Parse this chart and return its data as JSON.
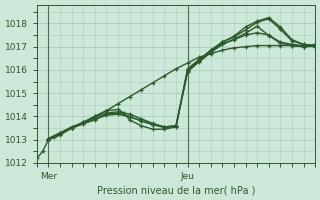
{
  "bg_color": "#cce8d8",
  "grid_color": "#aaccbb",
  "line_color": "#2d5a2d",
  "tick_label_color": "#2d5a2d",
  "xlabel": "Pression niveau de la mer( hPa )",
  "ylim": [
    1012,
    1018.8
  ],
  "yticks": [
    1012,
    1013,
    1014,
    1015,
    1016,
    1017,
    1018
  ],
  "xlim": [
    0,
    48
  ],
  "xticks": [
    2,
    26
  ],
  "xtick_labels": [
    "Mer",
    "Jeu"
  ],
  "vlines": [
    2,
    26
  ],
  "lines": [
    {
      "x": [
        0,
        1,
        2,
        3,
        4,
        6,
        8,
        10,
        12,
        14,
        16,
        18,
        20,
        22,
        24,
        26,
        28,
        30,
        32,
        34,
        36,
        38,
        40,
        42,
        44,
        46,
        48
      ],
      "y": [
        1012.2,
        1012.5,
        1013.0,
        1013.1,
        1013.2,
        1013.5,
        1013.75,
        1014.0,
        1014.25,
        1014.55,
        1014.85,
        1015.15,
        1015.45,
        1015.75,
        1016.05,
        1016.3,
        1016.55,
        1016.7,
        1016.85,
        1016.95,
        1017.0,
        1017.05,
        1017.05,
        1017.05,
        1017.05,
        1017.0,
        1017.1
      ],
      "lw": 1.0
    },
    {
      "x": [
        2,
        4,
        6,
        8,
        10,
        12,
        14,
        16,
        18,
        20,
        22,
        24,
        26,
        28,
        30,
        32,
        34,
        36,
        38,
        40,
        42,
        44,
        46,
        48
      ],
      "y": [
        1013.0,
        1013.25,
        1013.5,
        1013.7,
        1013.85,
        1014.1,
        1014.15,
        1014.0,
        1013.8,
        1013.65,
        1013.55,
        1013.6,
        1015.95,
        1016.35,
        1016.75,
        1017.1,
        1017.3,
        1017.5,
        1017.6,
        1017.5,
        1017.2,
        1017.1,
        1017.05,
        1017.0
      ],
      "lw": 1.0
    },
    {
      "x": [
        2,
        4,
        6,
        8,
        10,
        12,
        14,
        15,
        16,
        18,
        20,
        22,
        24,
        26,
        28,
        30,
        32,
        34,
        36,
        38,
        40,
        42,
        44,
        46,
        48
      ],
      "y": [
        1013.05,
        1013.3,
        1013.55,
        1013.75,
        1014.0,
        1014.25,
        1014.3,
        1014.15,
        1013.85,
        1013.6,
        1013.45,
        1013.45,
        1013.55,
        1016.05,
        1016.45,
        1016.85,
        1017.2,
        1017.45,
        1017.85,
        1018.1,
        1018.25,
        1017.85,
        1017.3,
        1017.1,
        1017.05
      ],
      "lw": 1.0
    },
    {
      "x": [
        2,
        4,
        6,
        8,
        10,
        12,
        14,
        16,
        18,
        20,
        22,
        24,
        26,
        28,
        30,
        32,
        34,
        36,
        38,
        40,
        42,
        44,
        46,
        48
      ],
      "y": [
        1013.0,
        1013.25,
        1013.5,
        1013.7,
        1013.95,
        1014.15,
        1014.2,
        1014.1,
        1013.9,
        1013.7,
        1013.55,
        1013.6,
        1016.0,
        1016.42,
        1016.85,
        1017.2,
        1017.42,
        1017.72,
        1018.05,
        1018.2,
        1017.75,
        1017.25,
        1017.1,
        1017.05
      ],
      "lw": 1.0
    },
    {
      "x": [
        2,
        4,
        6,
        8,
        10,
        12,
        14,
        16,
        18,
        20,
        22,
        24,
        26,
        28,
        30,
        32,
        34,
        36,
        38,
        40,
        42,
        44,
        46,
        48
      ],
      "y": [
        1013.05,
        1013.28,
        1013.5,
        1013.68,
        1013.88,
        1014.05,
        1014.1,
        1013.98,
        1013.82,
        1013.65,
        1013.52,
        1013.58,
        1015.92,
        1016.38,
        1016.82,
        1017.12,
        1017.32,
        1017.58,
        1017.88,
        1017.48,
        1017.15,
        1017.05,
        1017.0,
        1017.02
      ],
      "lw": 1.0
    }
  ]
}
